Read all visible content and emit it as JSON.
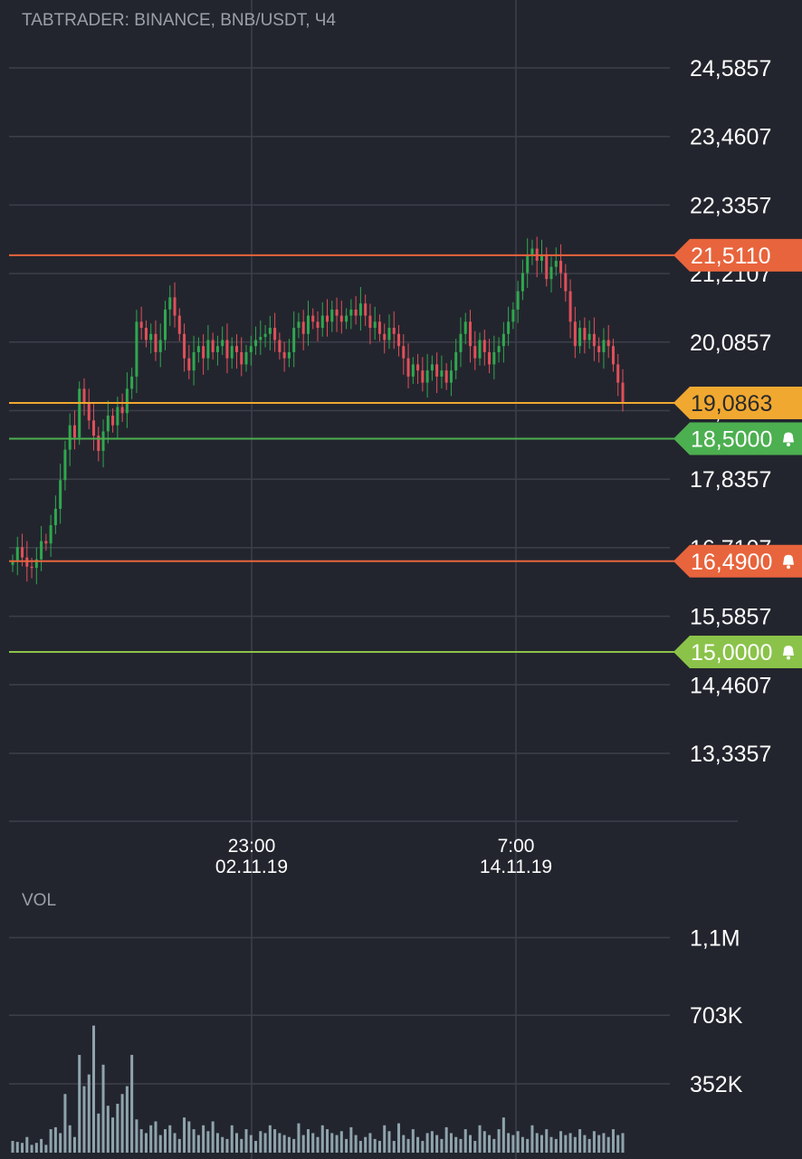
{
  "header": {
    "title": "TABTRADER: BINANCE, BNB/USDT, Ч4"
  },
  "volume": {
    "label": "VOL",
    "axis_labels": [
      "1,1M",
      "703K",
      "352K"
    ],
    "axis_values": [
      1100000,
      703000,
      352000
    ],
    "bar_color": "#8fa4ad"
  },
  "colors": {
    "background": "#23252e",
    "grid": "#3c3f4a",
    "up": "#2fa84f",
    "down": "#e0505a",
    "resistance": "#e8643c",
    "current": "#f0a830",
    "alert_green_dark": "#4caf50",
    "alert_green_light": "#8bc34a"
  },
  "chart_data": {
    "type": "candlestick",
    "title": "TABTRADER: BINANCE, BNB/USDT, Ч4",
    "y_ticks": [
      "24,5857",
      "23,4607",
      "22,3357",
      "21,2107",
      "20,0857",
      "18,9607",
      "17,8357",
      "16,7107",
      "15,5857",
      "14,4607",
      "13,3357"
    ],
    "y_tick_values": [
      24.5857,
      23.4607,
      22.3357,
      21.2107,
      20.0857,
      18.9607,
      17.8357,
      16.7107,
      15.5857,
      14.4607,
      13.3357
    ],
    "ylim": [
      12.21,
      25.15
    ],
    "x_ticks": [
      {
        "time": "23:00",
        "date": "02.11.19"
      },
      {
        "time": "7:00",
        "date": "14.11.19"
      }
    ],
    "price_levels": [
      {
        "label": "21,5110",
        "value": 21.511,
        "color": "#e8643c",
        "alert": false
      },
      {
        "label": "19,0863",
        "value": 19.0863,
        "color": "#f0a830",
        "alert": false,
        "current": true
      },
      {
        "label": "18,5000",
        "value": 18.5,
        "color": "#4caf50",
        "alert": true
      },
      {
        "label": "16,4900",
        "value": 16.49,
        "color": "#e8643c",
        "alert": true
      },
      {
        "label": "15,0000",
        "value": 15.0,
        "color": "#8bc34a",
        "alert": true
      }
    ],
    "closes": [
      16.48,
      16.72,
      16.55,
      16.4,
      16.38,
      16.52,
      16.82,
      16.78,
      17.08,
      17.35,
      17.82,
      18.32,
      18.72,
      18.52,
      19.32,
      19.1,
      18.8,
      18.55,
      18.3,
      18.62,
      18.88,
      18.72,
      19.02,
      18.92,
      19.32,
      19.52,
      20.42,
      20.32,
      20.12,
      20.22,
      19.92,
      20.12,
      20.62,
      20.82,
      20.52,
      20.22,
      19.82,
      19.62,
      19.92,
      20.02,
      19.82,
      20.12,
      19.92,
      20.02,
      20.12,
      19.82,
      20.02,
      19.92,
      19.72,
      19.92,
      20.02,
      20.12,
      20.17,
      20.22,
      20.32,
      20.12,
      19.92,
      19.82,
      19.92,
      20.32,
      20.42,
      20.22,
      20.52,
      20.42,
      20.32,
      20.52,
      20.42,
      20.62,
      20.52,
      20.42,
      20.52,
      20.62,
      20.52,
      20.72,
      20.52,
      20.32,
      20.42,
      20.22,
      20.12,
      20.32,
      20.22,
      20.02,
      19.82,
      19.52,
      19.72,
      19.62,
      19.42,
      19.62,
      19.72,
      19.52,
      19.62,
      19.42,
      19.62,
      19.92,
      20.22,
      20.42,
      20.02,
      19.82,
      20.12,
      19.92,
      19.72,
      19.92,
      20.02,
      20.22,
      20.42,
      20.62,
      20.92,
      21.22,
      21.52,
      21.62,
      21.42,
      21.52,
      21.12,
      21.32,
      21.42,
      21.22,
      20.92,
      20.42,
      20.02,
      20.32,
      20.12,
      20.22,
      20.02,
      19.92,
      20.12,
      20.02,
      19.72,
      19.42,
      19.09
    ],
    "volumes": [
      60000,
      55000,
      50000,
      80000,
      40000,
      50000,
      70000,
      40000,
      120000,
      130000,
      100000,
      300000,
      140000,
      80000,
      500000,
      340000,
      400000,
      650000,
      200000,
      450000,
      240000,
      180000,
      250000,
      300000,
      340000,
      500000,
      170000,
      120000,
      100000,
      140000,
      160000,
      90000,
      120000,
      140000,
      100000,
      70000,
      180000,
      160000,
      120000,
      90000,
      140000,
      110000,
      160000,
      100000,
      80000,
      70000,
      140000,
      100000,
      70000,
      120000,
      90000,
      60000,
      110000,
      100000,
      140000,
      120000,
      100000,
      90000,
      80000,
      70000,
      150000,
      90000,
      120000,
      100000,
      80000,
      140000,
      120000,
      100000,
      90000,
      110000,
      70000,
      130000,
      90000,
      60000,
      80000,
      100000,
      70000,
      60000,
      140000,
      110000,
      60000,
      150000,
      90000,
      70000,
      120000,
      80000,
      60000,
      100000,
      110000,
      90000,
      70000,
      130000,
      100000,
      80000,
      70000,
      120000,
      90000,
      60000,
      140000,
      110000,
      90000,
      70000,
      120000,
      180000,
      100000,
      90000,
      110000,
      80000,
      70000,
      140000,
      100000,
      90000,
      120000,
      80000,
      70000,
      110000,
      90000,
      100000,
      80000,
      120000,
      90000,
      70000,
      110000,
      90000,
      100000,
      80000,
      120000,
      90000,
      100000
    ]
  }
}
